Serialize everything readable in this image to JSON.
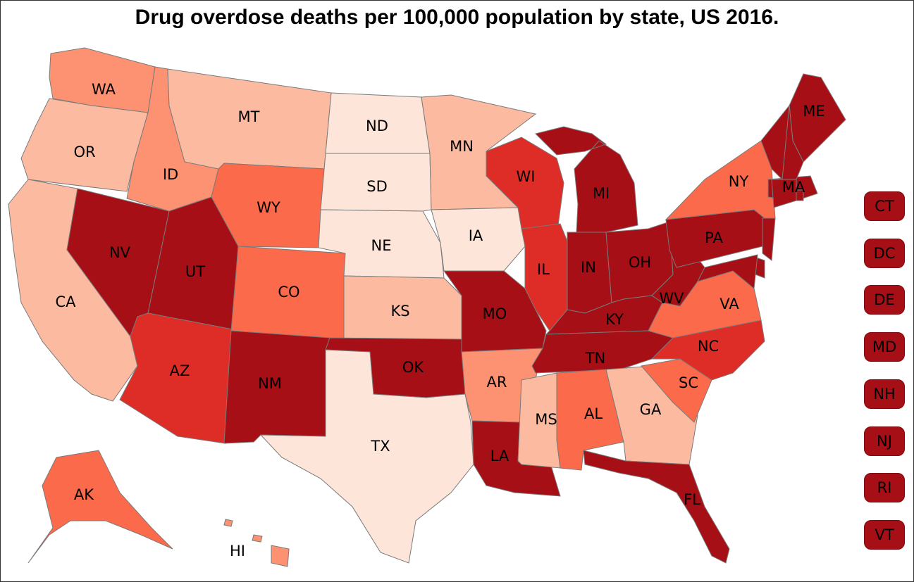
{
  "title": "Drug overdose deaths per 100,000 population by state, US 2016.",
  "colors": {
    "c1": "#fee5d9",
    "c2": "#fcbba1",
    "c3": "#fc9272",
    "c4": "#fb6a4a",
    "c5": "#de2d26",
    "c6": "#a50f15"
  },
  "states": [
    {
      "abbr": "WA",
      "color_class": "c3"
    },
    {
      "abbr": "OR",
      "color_class": "c2"
    },
    {
      "abbr": "CA",
      "color_class": "c2"
    },
    {
      "abbr": "NV",
      "color_class": "c6"
    },
    {
      "abbr": "ID",
      "color_class": "c3"
    },
    {
      "abbr": "MT",
      "color_class": "c2"
    },
    {
      "abbr": "WY",
      "color_class": "c4"
    },
    {
      "abbr": "UT",
      "color_class": "c6"
    },
    {
      "abbr": "AZ",
      "color_class": "c5"
    },
    {
      "abbr": "CO",
      "color_class": "c4"
    },
    {
      "abbr": "NM",
      "color_class": "c6"
    },
    {
      "abbr": "ND",
      "color_class": "c1"
    },
    {
      "abbr": "SD",
      "color_class": "c1"
    },
    {
      "abbr": "NE",
      "color_class": "c1"
    },
    {
      "abbr": "KS",
      "color_class": "c2"
    },
    {
      "abbr": "OK",
      "color_class": "c6"
    },
    {
      "abbr": "TX",
      "color_class": "c1"
    },
    {
      "abbr": "MN",
      "color_class": "c2"
    },
    {
      "abbr": "IA",
      "color_class": "c1"
    },
    {
      "abbr": "MO",
      "color_class": "c6"
    },
    {
      "abbr": "AR",
      "color_class": "c3"
    },
    {
      "abbr": "LA",
      "color_class": "c6"
    },
    {
      "abbr": "WI",
      "color_class": "c5"
    },
    {
      "abbr": "IL",
      "color_class": "c5"
    },
    {
      "abbr": "MI",
      "color_class": "c6"
    },
    {
      "abbr": "IN",
      "color_class": "c6"
    },
    {
      "abbr": "OH",
      "color_class": "c6"
    },
    {
      "abbr": "KY",
      "color_class": "c6"
    },
    {
      "abbr": "TN",
      "color_class": "c6"
    },
    {
      "abbr": "MS",
      "color_class": "c2"
    },
    {
      "abbr": "AL",
      "color_class": "c4"
    },
    {
      "abbr": "GA",
      "color_class": "c2"
    },
    {
      "abbr": "FL",
      "color_class": "c6"
    },
    {
      "abbr": "SC",
      "color_class": "c4"
    },
    {
      "abbr": "NC",
      "color_class": "c5"
    },
    {
      "abbr": "VA",
      "color_class": "c4"
    },
    {
      "abbr": "WV",
      "color_class": "c6"
    },
    {
      "abbr": "PA",
      "color_class": "c6"
    },
    {
      "abbr": "NY",
      "color_class": "c4"
    },
    {
      "abbr": "ME",
      "color_class": "c6"
    },
    {
      "abbr": "MA",
      "color_class": "c6"
    },
    {
      "abbr": "AK",
      "color_class": "c4"
    },
    {
      "abbr": "HI",
      "color_class": "c3"
    }
  ],
  "small_states": [
    "CT",
    "DC",
    "DE",
    "MD",
    "NH",
    "NJ",
    "RI",
    "VT"
  ]
}
